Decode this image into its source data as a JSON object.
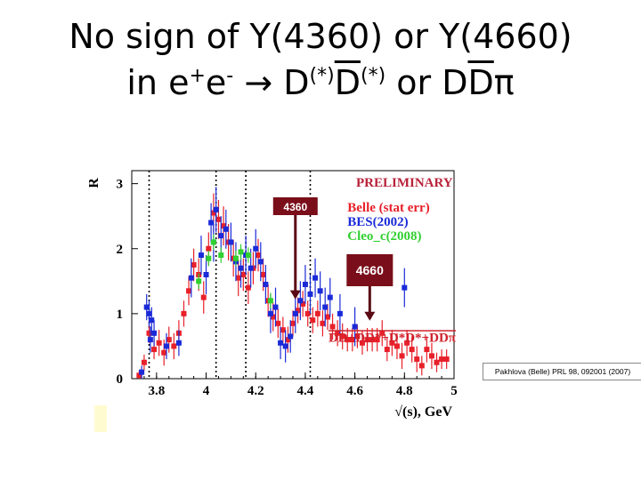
{
  "slide": {
    "title_line1": "No sign of Y(4360) or Y(4660)",
    "title_line2_prefix": "in e",
    "title_line2_plus": "+",
    "title_line2_e": "e",
    "title_line2_minus": "-",
    "title_line2_arrow": "→",
    "title_line2_D": "D",
    "title_line2_star": "(*)",
    "title_line2_or": "or",
    "title_line2_DD": "DD",
    "title_line2_Dbar": "D",
    "title_line2_pi": "π",
    "citation": "Pakhlova (Belle) PRL 98, 092001 (2007)"
  },
  "chart_data": {
    "type": "scatter",
    "xlabel": "√(s), GeV",
    "ylabel": "R",
    "xlim": [
      3.7,
      5.0
    ],
    "ylim": [
      0,
      3.2
    ],
    "xticks": [
      3.8,
      4.0,
      4.2,
      4.4,
      4.6,
      4.8,
      5.0
    ],
    "xtick_labels": [
      "3.8",
      "4",
      "4.2",
      "4.4",
      "4.6",
      "4.8",
      "5"
    ],
    "yticks": [
      0,
      1,
      2,
      3
    ],
    "ytick_labels": [
      "0",
      "1",
      "2",
      "3"
    ],
    "vlines": [
      3.77,
      4.04,
      4.16,
      4.42
    ],
    "preliminary_label": "PRELIMINARY",
    "sum_label": "DD+DD*+D*D*+DDπ",
    "annotations": [
      {
        "text": "4360",
        "x": 4.36
      },
      {
        "text": "4660",
        "x": 4.66
      }
    ],
    "series": [
      {
        "name": "Belle (stat err)",
        "color": "#e8202a",
        "points": [
          [
            3.73,
            0.05,
            0.08
          ],
          [
            3.75,
            0.25,
            0.12
          ],
          [
            3.77,
            0.7,
            0.15
          ],
          [
            3.79,
            0.45,
            0.15
          ],
          [
            3.81,
            0.55,
            0.2
          ],
          [
            3.83,
            0.4,
            0.2
          ],
          [
            3.85,
            0.6,
            0.2
          ],
          [
            3.87,
            0.5,
            0.2
          ],
          [
            3.89,
            0.7,
            0.2
          ],
          [
            3.91,
            1.0,
            0.2
          ],
          [
            3.93,
            1.35,
            0.22
          ],
          [
            3.95,
            1.75,
            0.25
          ],
          [
            3.97,
            1.6,
            0.25
          ],
          [
            3.99,
            1.25,
            0.25
          ],
          [
            4.01,
            2.0,
            0.25
          ],
          [
            4.03,
            2.55,
            0.3
          ],
          [
            4.05,
            2.45,
            0.3
          ],
          [
            4.07,
            2.35,
            0.3
          ],
          [
            4.09,
            2.1,
            0.28
          ],
          [
            4.11,
            1.85,
            0.28
          ],
          [
            4.13,
            1.55,
            0.28
          ],
          [
            4.15,
            1.6,
            0.25
          ],
          [
            4.17,
            1.4,
            0.25
          ],
          [
            4.19,
            1.7,
            0.25
          ],
          [
            4.21,
            1.9,
            0.25
          ],
          [
            4.23,
            1.6,
            0.25
          ],
          [
            4.25,
            1.2,
            0.25
          ],
          [
            4.27,
            0.95,
            0.22
          ],
          [
            4.29,
            0.85,
            0.22
          ],
          [
            4.31,
            0.75,
            0.2
          ],
          [
            4.33,
            0.6,
            0.2
          ],
          [
            4.35,
            0.85,
            0.2
          ],
          [
            4.37,
            1.05,
            0.2
          ],
          [
            4.39,
            1.15,
            0.2
          ],
          [
            4.41,
            1.0,
            0.2
          ],
          [
            4.43,
            0.9,
            0.2
          ],
          [
            4.45,
            1.0,
            0.2
          ],
          [
            4.47,
            0.85,
            0.2
          ],
          [
            4.49,
            0.95,
            0.2
          ],
          [
            4.51,
            0.8,
            0.2
          ],
          [
            4.53,
            0.7,
            0.2
          ],
          [
            4.55,
            0.65,
            0.2
          ],
          [
            4.57,
            0.6,
            0.18
          ],
          [
            4.59,
            0.6,
            0.18
          ],
          [
            4.61,
            0.65,
            0.18
          ],
          [
            4.63,
            0.55,
            0.18
          ],
          [
            4.65,
            0.6,
            0.18
          ],
          [
            4.67,
            0.6,
            0.18
          ],
          [
            4.69,
            0.6,
            0.18
          ],
          [
            4.71,
            0.7,
            0.2
          ],
          [
            4.73,
            0.45,
            0.18
          ],
          [
            4.75,
            0.55,
            0.2
          ],
          [
            4.77,
            0.5,
            0.2
          ],
          [
            4.79,
            0.35,
            0.2
          ],
          [
            4.81,
            0.55,
            0.2
          ],
          [
            4.83,
            0.45,
            0.2
          ],
          [
            4.85,
            0.3,
            0.2
          ],
          [
            4.87,
            0.2,
            0.15
          ],
          [
            4.89,
            0.45,
            0.2
          ],
          [
            4.91,
            0.35,
            0.2
          ],
          [
            4.93,
            0.25,
            0.15
          ],
          [
            4.95,
            0.3,
            0.15
          ],
          [
            4.97,
            0.3,
            0.15
          ]
        ]
      },
      {
        "name": "BES(2002)",
        "color": "#1a2ad8",
        "points": [
          [
            3.74,
            0.1,
            0.1
          ],
          [
            3.76,
            1.1,
            0.2
          ],
          [
            3.77,
            1.0,
            0.2
          ],
          [
            3.775,
            0.6,
            0.2
          ],
          [
            3.78,
            0.9,
            0.2
          ],
          [
            3.79,
            0.7,
            0.2
          ],
          [
            3.84,
            0.5,
            0.2
          ],
          [
            3.89,
            0.55,
            0.2
          ],
          [
            3.94,
            1.55,
            0.3
          ],
          [
            3.98,
            1.9,
            0.3
          ],
          [
            4.0,
            1.6,
            0.3
          ],
          [
            4.02,
            2.4,
            0.3
          ],
          [
            4.03,
            2.1,
            0.3
          ],
          [
            4.04,
            2.6,
            0.35
          ],
          [
            4.06,
            2.2,
            0.3
          ],
          [
            4.08,
            2.3,
            0.3
          ],
          [
            4.1,
            2.1,
            0.3
          ],
          [
            4.12,
            1.8,
            0.3
          ],
          [
            4.14,
            1.7,
            0.3
          ],
          [
            4.16,
            1.9,
            0.3
          ],
          [
            4.18,
            1.7,
            0.3
          ],
          [
            4.2,
            2.0,
            0.3
          ],
          [
            4.22,
            1.8,
            0.3
          ],
          [
            4.24,
            1.45,
            0.3
          ],
          [
            4.26,
            1.0,
            0.3
          ],
          [
            4.28,
            1.1,
            0.3
          ],
          [
            4.3,
            0.55,
            0.25
          ],
          [
            4.32,
            0.5,
            0.25
          ],
          [
            4.34,
            0.65,
            0.25
          ],
          [
            4.36,
            1.0,
            0.3
          ],
          [
            4.38,
            1.2,
            0.3
          ],
          [
            4.4,
            1.45,
            0.3
          ],
          [
            4.42,
            1.3,
            0.3
          ],
          [
            4.44,
            1.55,
            0.3
          ],
          [
            4.46,
            1.35,
            0.3
          ],
          [
            4.48,
            1.1,
            0.3
          ],
          [
            4.5,
            1.25,
            0.3
          ],
          [
            4.54,
            1.0,
            0.3
          ],
          [
            4.6,
            0.8,
            0.3
          ],
          [
            4.8,
            1.4,
            0.3
          ]
        ]
      },
      {
        "name": "Cleo_c(2008)",
        "color": "#30d030",
        "points": [
          [
            3.97,
            1.5,
            0.12
          ],
          [
            4.01,
            1.85,
            0.12
          ],
          [
            4.03,
            2.1,
            0.12
          ],
          [
            4.06,
            1.9,
            0.12
          ],
          [
            4.12,
            1.85,
            0.12
          ],
          [
            4.14,
            1.95,
            0.12
          ],
          [
            4.17,
            1.9,
            0.12
          ],
          [
            4.26,
            1.2,
            0.12
          ]
        ]
      }
    ]
  }
}
